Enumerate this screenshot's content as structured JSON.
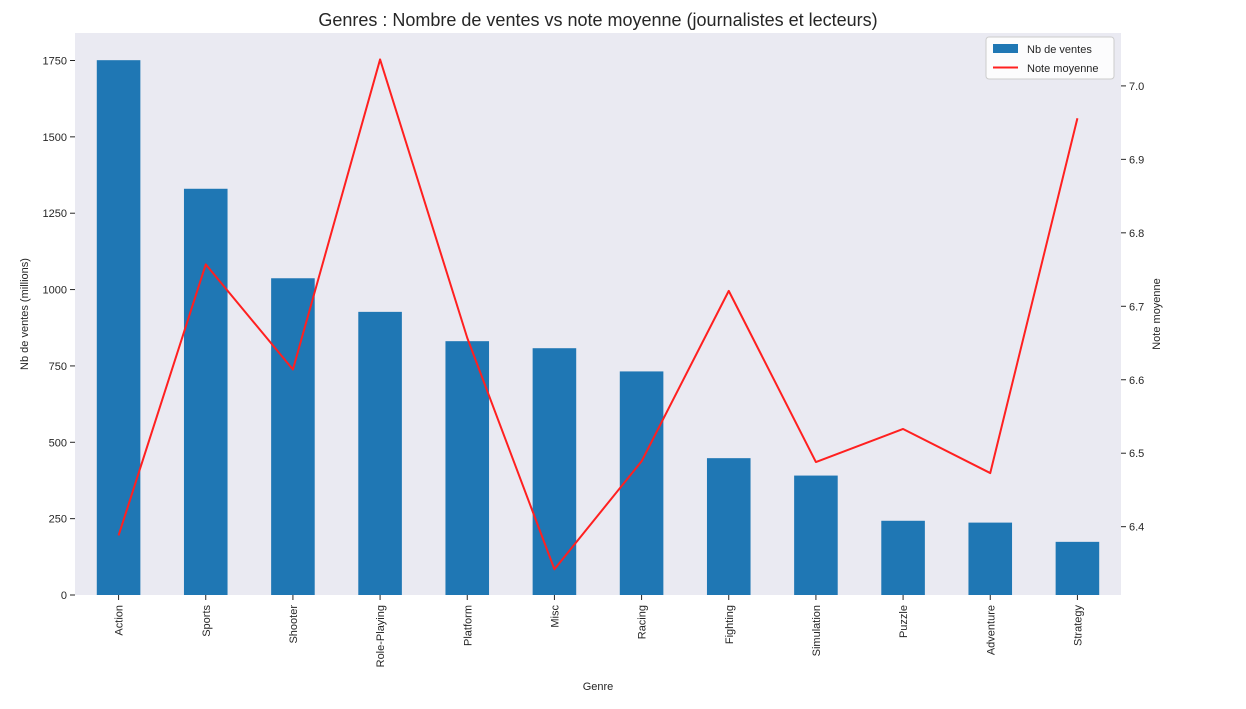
{
  "chart_data": {
    "type": "bar",
    "title": "Genres : Nombre de ventes vs note moyenne (journalistes et lecteurs)",
    "xlabel": "Genre",
    "ylabel": "Nb de ventes (millions)",
    "y2label": "Note moyenne",
    "categories": [
      "Action",
      "Sports",
      "Shooter",
      "Role-Playing",
      "Platform",
      "Misc",
      "Racing",
      "Fighting",
      "Simulation",
      "Puzzle",
      "Adventure",
      "Strategy"
    ],
    "series": [
      {
        "name": "Nb de ventes",
        "kind": "bar",
        "axis": "left",
        "color": "#1f77b4",
        "values": [
          1751,
          1330,
          1037,
          927,
          831,
          808,
          732,
          448,
          391,
          243,
          237,
          174
        ]
      },
      {
        "name": "Note moyenne",
        "kind": "line",
        "axis": "right",
        "color": "#ff2020",
        "values": [
          6.388,
          6.757,
          6.614,
          7.036,
          6.657,
          6.342,
          6.489,
          6.721,
          6.488,
          6.533,
          6.473,
          6.956
        ]
      }
    ],
    "ylim": [
      0,
      1840
    ],
    "y2lim": [
      6.307,
      7.072
    ],
    "yticks": [
      0,
      250,
      500,
      750,
      1000,
      1250,
      1500,
      1750
    ],
    "ytick_labels": [
      "0",
      "250",
      "500",
      "750",
      "1000",
      "1250",
      "1500",
      "1750"
    ],
    "y2ticks": [
      6.4,
      6.5,
      6.6,
      6.7,
      6.8,
      6.9,
      7.0
    ],
    "y2tick_labels": [
      "6.4",
      "6.5",
      "6.6",
      "6.7",
      "6.8",
      "6.9",
      "7.0"
    ],
    "grid": false,
    "legend_position": "top-right",
    "background_color": "#eaeaf2"
  }
}
